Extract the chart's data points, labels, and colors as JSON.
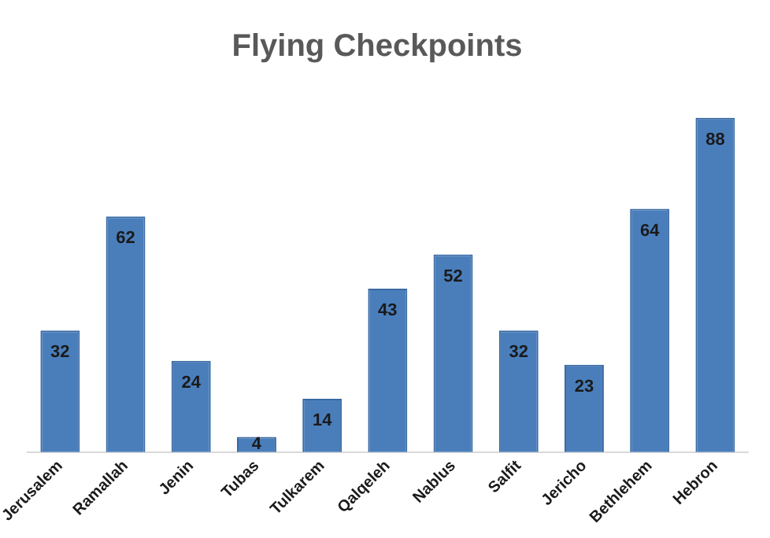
{
  "chart_data": {
    "type": "bar",
    "title": "Flying Checkpoints",
    "categories": [
      "Jerusalem",
      "Ramallah",
      "Jenin",
      "Tubas",
      "Tulkarem",
      "Qalqeleh",
      "Nablus",
      "Salfit",
      "Jericho",
      "Bethlehem",
      "Hebron"
    ],
    "values": [
      32,
      62,
      24,
      4,
      14,
      43,
      52,
      32,
      23,
      64,
      88
    ],
    "color": "#4a7ebb",
    "data_labels": true,
    "grid": false,
    "legend": false
  }
}
